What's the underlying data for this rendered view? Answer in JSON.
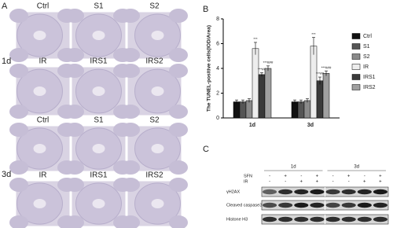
{
  "panel_a": {
    "label": "A",
    "row_labels": [
      "1d",
      "3d"
    ],
    "rows": [
      [
        "Ctrl",
        "S1",
        "S2"
      ],
      [
        "IR",
        "IRS1",
        "IRS2"
      ],
      [
        "Ctrl",
        "S1",
        "S2"
      ],
      [
        "IR",
        "IRS1",
        "IRS2"
      ]
    ]
  },
  "chart_data": {
    "type": "bar",
    "panel_label": "B",
    "y_label": "The TUNEL-positive cells(IOD/Area)",
    "categories": [
      "1d",
      "3d"
    ],
    "ylim": [
      0,
      8
    ],
    "yticks": [
      0,
      2,
      4,
      6,
      8
    ],
    "series": [
      {
        "name": "Ctrl",
        "color": "#111111",
        "values": [
          1.3,
          1.3
        ],
        "errors": [
          0.15,
          0.15
        ]
      },
      {
        "name": "S1",
        "color": "#555555",
        "values": [
          1.3,
          1.3
        ],
        "errors": [
          0.15,
          0.15
        ]
      },
      {
        "name": "S2",
        "color": "#8a8a8a",
        "values": [
          1.4,
          1.4
        ],
        "errors": [
          0.15,
          0.15
        ]
      },
      {
        "name": "IR",
        "color": "#ededed",
        "values": [
          5.6,
          5.8
        ],
        "errors": [
          0.5,
          0.7
        ],
        "labels": [
          "***",
          "***"
        ]
      },
      {
        "name": "IRS1",
        "color": "#3a3a3a",
        "values": [
          3.5,
          3.0
        ],
        "errors": [
          0.15,
          0.3
        ],
        "labels": [
          "***##",
          "***##"
        ]
      },
      {
        "name": "IRS2",
        "color": "#a0a0a0",
        "values": [
          4.0,
          3.6
        ],
        "errors": [
          0.2,
          0.2
        ],
        "labels": [
          "***###",
          "***###"
        ]
      }
    ]
  },
  "panel_c": {
    "label": "C",
    "groups": [
      "1d",
      "3d"
    ],
    "treatments": [
      {
        "name": "SFN",
        "signs": [
          "-",
          "+",
          "-",
          "+",
          "-",
          "+",
          "-",
          "+"
        ]
      },
      {
        "name": "IR",
        "signs": [
          "-",
          "-",
          "+",
          "+",
          "-",
          "-",
          "+",
          "+"
        ]
      }
    ],
    "blots": [
      "γH2AX",
      "Cleaved caspase3",
      "Histone H3"
    ]
  }
}
